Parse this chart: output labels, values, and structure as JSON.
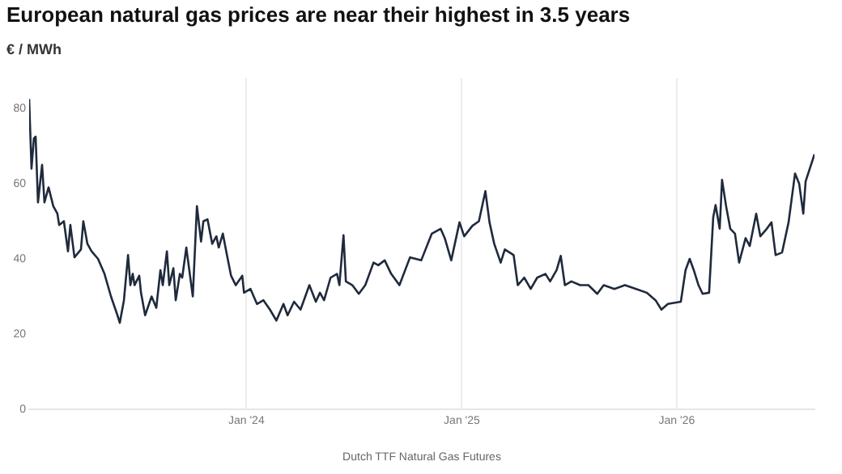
{
  "chart_data": {
    "type": "line",
    "title": "European natural gas prices are near their highest in 3.5 years",
    "ylabel": "€ / MWh",
    "xlabel": "Dutch TTF Natural Gas Futures",
    "xlim": [
      "2022-12-28",
      "2026-08-23"
    ],
    "xticks": [
      {
        "value": "2024-01-01",
        "label": "Jan '24"
      },
      {
        "value": "2025-01-01",
        "label": "Jan '25"
      },
      {
        "value": "2026-01-01",
        "label": "Jan '26"
      }
    ],
    "ylim": [
      0,
      88
    ],
    "yticks": [
      0,
      20,
      40,
      60,
      80
    ],
    "grid": "x",
    "legend": false,
    "series": [
      {
        "color": "#1f2a3c",
        "x": [
          "2022-12-28",
          "2023-01-01",
          "2023-01-05",
          "2023-01-08",
          "2023-01-12",
          "2023-01-19",
          "2023-01-23",
          "2023-01-30",
          "2023-02-07",
          "2023-02-14",
          "2023-02-17",
          "2023-02-25",
          "2023-03-04",
          "2023-03-08",
          "2023-03-15",
          "2023-03-26",
          "2023-03-30",
          "2023-04-06",
          "2023-04-13",
          "2023-04-24",
          "2023-05-05",
          "2023-05-16",
          "2023-05-27",
          "2023-05-31",
          "2023-06-07",
          "2023-06-14",
          "2023-06-18",
          "2023-06-22",
          "2023-06-25",
          "2023-07-03",
          "2023-07-06",
          "2023-07-13",
          "2023-07-24",
          "2023-08-01",
          "2023-08-08",
          "2023-08-12",
          "2023-08-19",
          "2023-08-23",
          "2023-08-30",
          "2023-09-03",
          "2023-09-10",
          "2023-09-14",
          "2023-09-21",
          "2023-10-02",
          "2023-10-09",
          "2023-10-16",
          "2023-10-20",
          "2023-10-27",
          "2023-11-04",
          "2023-11-11",
          "2023-11-15",
          "2023-11-22",
          "2023-11-29",
          "2023-12-06",
          "2023-12-14",
          "2023-12-25",
          "2023-12-28",
          "2024-01-08",
          "2024-01-19",
          "2024-01-30",
          "2024-02-10",
          "2024-02-21",
          "2024-03-04",
          "2024-03-11",
          "2024-03-22",
          "2024-04-02",
          "2024-04-17",
          "2024-04-28",
          "2024-05-05",
          "2024-05-12",
          "2024-05-23",
          "2024-06-03",
          "2024-06-07",
          "2024-06-14",
          "2024-06-18",
          "2024-06-29",
          "2024-07-10",
          "2024-07-21",
          "2024-08-04",
          "2024-08-12",
          "2024-08-23",
          "2024-09-03",
          "2024-09-17",
          "2024-10-05",
          "2024-10-24",
          "2024-11-11",
          "2024-11-26",
          "2024-12-03",
          "2024-12-14",
          "2024-12-28",
          "2025-01-05",
          "2025-01-19",
          "2025-01-30",
          "2025-02-10",
          "2025-02-17",
          "2025-02-25",
          "2025-03-08",
          "2025-03-15",
          "2025-03-30",
          "2025-04-06",
          "2025-04-17",
          "2025-04-28",
          "2025-05-09",
          "2025-05-23",
          "2025-05-31",
          "2025-06-11",
          "2025-06-18",
          "2025-06-25",
          "2025-07-06",
          "2025-07-21",
          "2025-08-04",
          "2025-08-19",
          "2025-08-30",
          "2025-09-17",
          "2025-10-05",
          "2025-10-24",
          "2025-11-11",
          "2025-11-26",
          "2025-12-06",
          "2025-12-17",
          "2026-01-08",
          "2026-01-16",
          "2026-01-23",
          "2026-01-30",
          "2026-02-07",
          "2026-02-14",
          "2026-02-25",
          "2026-03-04",
          "2026-03-08",
          "2026-03-15",
          "2026-03-19",
          "2026-03-26",
          "2026-04-02",
          "2026-04-10",
          "2026-04-17",
          "2026-04-28",
          "2026-05-05",
          "2026-05-16",
          "2026-05-23",
          "2026-06-03",
          "2026-06-11",
          "2026-06-18",
          "2026-06-29",
          "2026-07-10",
          "2026-07-21",
          "2026-07-28",
          "2026-08-04",
          "2026-08-08",
          "2026-08-23"
        ],
        "values": [
          82.5,
          64,
          72,
          72.5,
          55,
          65,
          55,
          59,
          54,
          52,
          49,
          50,
          42,
          49,
          40.4,
          42.5,
          50,
          44,
          42,
          40,
          36,
          30,
          25,
          23,
          29,
          41,
          33,
          36,
          33,
          35.5,
          31,
          25,
          30,
          27,
          37,
          33,
          42,
          33,
          37.5,
          29,
          36,
          35,
          43,
          30,
          54,
          44.6,
          50,
          50.5,
          44,
          46,
          43,
          46.7,
          41,
          35.5,
          33,
          35.5,
          31,
          32,
          28,
          29,
          26.5,
          23.6,
          28,
          25,
          28.6,
          26.5,
          33,
          28.6,
          31,
          29,
          35,
          36,
          33,
          46.3,
          34,
          33,
          30.7,
          33,
          39,
          38.3,
          39.6,
          36,
          33,
          40.4,
          39.6,
          46.7,
          48,
          45.5,
          39.6,
          49.7,
          46,
          48.8,
          50,
          58,
          49.7,
          44,
          39,
          42.5,
          41,
          33,
          35,
          32,
          35,
          36,
          34,
          37,
          40.8,
          33,
          34,
          33,
          33,
          30.7,
          33,
          32,
          33,
          32,
          31,
          29,
          26.5,
          28,
          28.6,
          37,
          40,
          37,
          33,
          30.7,
          31,
          51,
          54.3,
          48,
          61,
          53.9,
          48,
          46.7,
          39,
          45.5,
          43.4,
          52,
          46,
          48,
          49.7,
          41,
          41.7,
          49.7,
          62.7,
          60,
          52,
          60.6,
          67.8
        ]
      }
    ]
  }
}
